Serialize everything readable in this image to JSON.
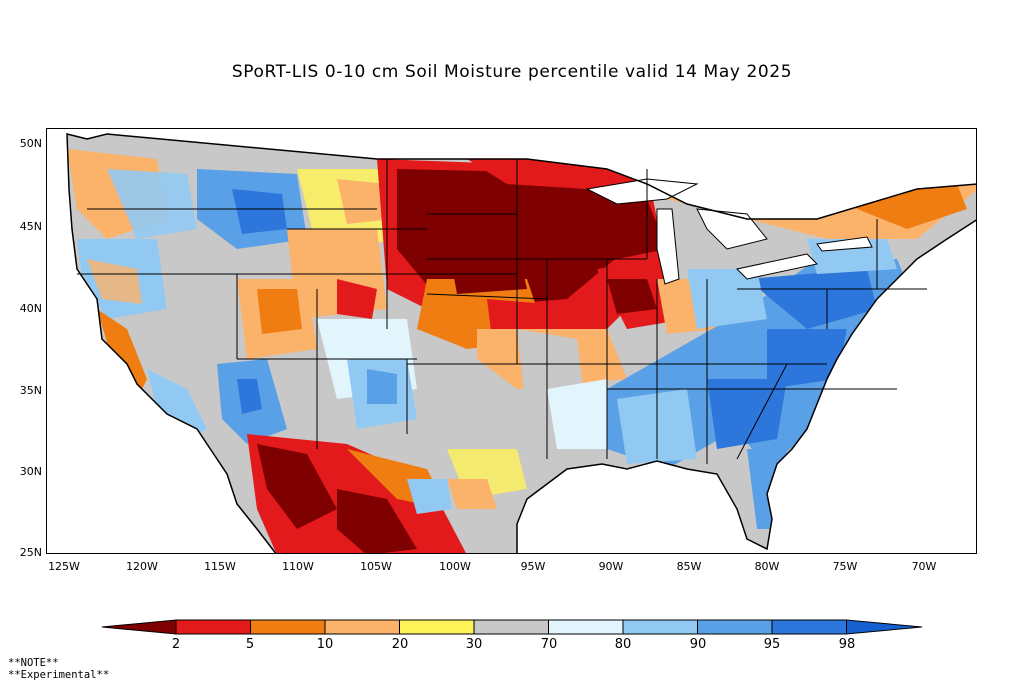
{
  "title": "SPoRT-LIS 0-10 cm Soil Moisture percentile valid 14 May 2025",
  "map": {
    "latitude_labels": [
      "50N",
      "45N",
      "40N",
      "35N",
      "30N",
      "25N"
    ],
    "longitude_labels": [
      "125W",
      "120W",
      "115W",
      "110W",
      "105W",
      "100W",
      "95W",
      "90W",
      "85W",
      "80W",
      "75W",
      "70W"
    ],
    "colors": {
      "below_2": "#7f0000",
      "2_5": "#e31a1c",
      "5_10": "#f07d12",
      "10_20": "#fbb36b",
      "20_30": "#fff35a",
      "30_70": "#c8c8c8",
      "70_80": "#e2f4fc",
      "80_90": "#92c9f2",
      "90_95": "#5aa0e6",
      "95_98": "#2d77dc",
      "above_98": "#1560d0",
      "water": "#ffffff",
      "outline": "#000000"
    }
  },
  "colorbar": {
    "labels": [
      "2",
      "5",
      "10",
      "20",
      "30",
      "70",
      "80",
      "90",
      "95",
      "98"
    ],
    "colors": [
      "#7f0000",
      "#e31a1c",
      "#f07d12",
      "#fbb36b",
      "#fff35a",
      "#c8c8c8",
      "#e2f4fc",
      "#92c9f2",
      "#5aa0e6",
      "#2d77dc",
      "#1560d0"
    ]
  },
  "note": {
    "line1": "**NOTE**",
    "line2": "**Experimental**"
  }
}
